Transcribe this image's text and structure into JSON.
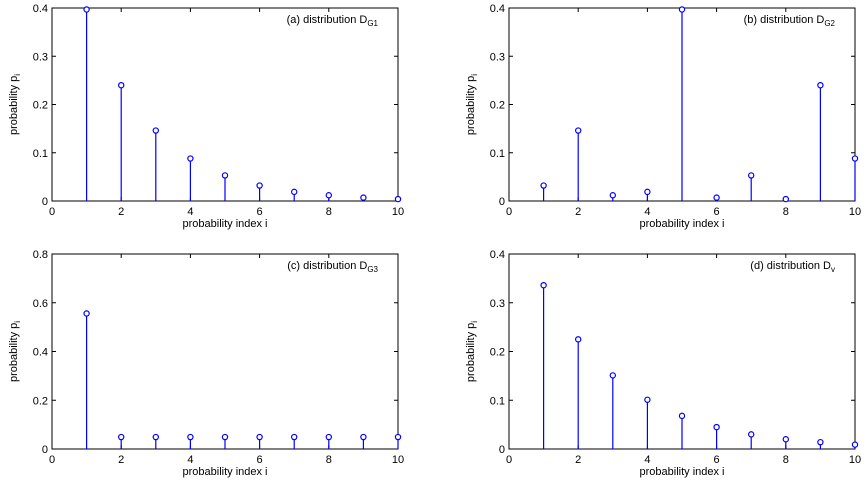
{
  "chart_data": [
    {
      "type": "stem",
      "title": "(a) distribution D",
      "title_sub": "G1",
      "xlabel": "probability index i",
      "ylabel": "probability p",
      "ylabel_sub": "i",
      "xlim": [
        0,
        10
      ],
      "ylim": [
        0,
        0.4
      ],
      "xticks": [
        0,
        2,
        4,
        6,
        8,
        10
      ],
      "yticks": [
        0,
        0.1,
        0.2,
        0.3,
        0.4
      ],
      "x": [
        1,
        2,
        3,
        4,
        5,
        6,
        7,
        8,
        9,
        10
      ],
      "values": [
        0.397,
        0.24,
        0.146,
        0.088,
        0.053,
        0.032,
        0.019,
        0.012,
        0.007,
        0.004
      ],
      "color": "#0000ff",
      "grid": false
    },
    {
      "type": "stem",
      "title": "(b) distribution D",
      "title_sub": "G2",
      "xlabel": "probability index i",
      "ylabel": "probability p",
      "ylabel_sub": "i",
      "xlim": [
        0,
        10
      ],
      "ylim": [
        0,
        0.4
      ],
      "xticks": [
        0,
        2,
        4,
        6,
        8,
        10
      ],
      "yticks": [
        0,
        0.1,
        0.2,
        0.3,
        0.4
      ],
      "x": [
        1,
        2,
        3,
        4,
        5,
        6,
        7,
        8,
        9,
        10
      ],
      "values": [
        0.032,
        0.146,
        0.012,
        0.019,
        0.397,
        0.007,
        0.053,
        0.004,
        0.24,
        0.088
      ],
      "color": "#0000ff",
      "grid": false
    },
    {
      "type": "stem",
      "title": "(c) distribution D",
      "title_sub": "G3",
      "xlabel": "probability index i",
      "ylabel": "probability p",
      "ylabel_sub": "i",
      "xlim": [
        0,
        10
      ],
      "ylim": [
        0,
        0.8
      ],
      "xticks": [
        0,
        2,
        4,
        6,
        8,
        10
      ],
      "yticks": [
        0,
        0.2,
        0.4,
        0.6,
        0.8
      ],
      "x": [
        1,
        2,
        3,
        4,
        5,
        6,
        7,
        8,
        9,
        10
      ],
      "values": [
        0.556,
        0.049,
        0.049,
        0.049,
        0.049,
        0.049,
        0.049,
        0.049,
        0.049,
        0.049
      ],
      "color": "#0000ff",
      "grid": false
    },
    {
      "type": "stem",
      "title": "(d) distribution D",
      "title_sub": "v",
      "xlabel": "probability index i",
      "ylabel": "probability p",
      "ylabel_sub": "i",
      "xlim": [
        0,
        10
      ],
      "ylim": [
        0,
        0.4
      ],
      "xticks": [
        0,
        2,
        4,
        6,
        8,
        10
      ],
      "yticks": [
        0,
        0.1,
        0.2,
        0.3,
        0.4
      ],
      "x": [
        1,
        2,
        3,
        4,
        5,
        6,
        7,
        8,
        9,
        10
      ],
      "values": [
        0.336,
        0.225,
        0.151,
        0.101,
        0.068,
        0.045,
        0.03,
        0.02,
        0.014,
        0.009
      ],
      "color": "#0000ff",
      "grid": false
    }
  ]
}
